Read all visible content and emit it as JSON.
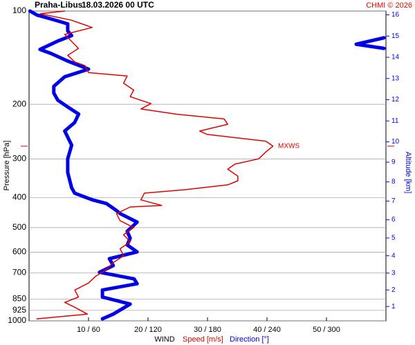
{
  "chart_data": {
    "type": "line",
    "title": "Praha-Libus",
    "subtitle": "18.03.2026 00 UTC",
    "credit": "CHMI © 2026",
    "ylabel": "Pressure [hPa]",
    "y2label": "Altitude [km]",
    "xlabel": "WIND",
    "ylim": [
      100,
      1000
    ],
    "ylog": true,
    "yticks": [
      100,
      200,
      300,
      400,
      500,
      600,
      700,
      850,
      925,
      1000
    ],
    "grid": true,
    "xlim": [
      0,
      60
    ],
    "xticks": [
      {
        "value": 10,
        "label": "10 / 60"
      },
      {
        "value": 20,
        "label": "20 / 120"
      },
      {
        "value": 30,
        "label": "30 / 180"
      },
      {
        "value": 40,
        "label": "40 / 240"
      },
      {
        "value": 50,
        "label": "50 / 300"
      }
    ],
    "y2ticks": [
      1,
      2,
      3,
      4,
      5,
      6,
      7,
      8,
      9,
      10,
      11,
      12,
      13,
      14,
      15,
      16
    ],
    "annotation": {
      "text": "MXWS",
      "pressure": 273
    },
    "series": [
      {
        "name": "Speed [m/s]",
        "color": "#e00000",
        "xlim": [
          0,
          60
        ],
        "pressure": [
          100,
          102,
          107,
          113,
          119,
          125,
          132,
          139,
          146,
          150,
          158,
          162,
          171,
          180,
          189,
          199,
          207,
          215,
          223,
          232,
          244,
          250,
          263,
          273,
          285,
          300,
          312,
          324,
          341,
          353,
          364,
          377,
          387,
          407,
          424,
          429,
          451,
          475,
          500,
          527,
          556,
          585,
          617,
          649,
          683,
          718,
          755,
          795,
          838,
          872,
          904,
          951,
          985
        ],
        "values": [
          6,
          1.9,
          7.1,
          10.6,
          6,
          7.1,
          8.3,
          6.5,
          7.7,
          9.4,
          10,
          16.5,
          15.9,
          17.6,
          17,
          20.5,
          18.8,
          24.6,
          32.8,
          33.4,
          28.7,
          29.9,
          39.8,
          41,
          39.8,
          38.6,
          34.6,
          33.4,
          35.1,
          35.1,
          33.4,
          26.4,
          19.4,
          18.8,
          22.3,
          17,
          14.7,
          15.3,
          17.6,
          15.9,
          17,
          15.3,
          15.9,
          14.1,
          13,
          11.2,
          10,
          7.7,
          8.3,
          6,
          7.7,
          9.8,
          1.3
        ]
      },
      {
        "name": "Direction [°]",
        "color": "#0000e6",
        "xlim": [
          0,
          360
        ],
        "pressure": [
          100,
          103,
          106,
          110,
          116,
          120,
          125,
          133,
          137,
          145,
          154,
          163,
          175,
          184,
          194,
          204,
          215,
          229,
          244,
          271,
          300,
          332,
          372,
          387,
          407,
          418,
          440,
          451,
          480,
          514,
          541,
          569,
          599,
          630,
          663,
          697,
          732,
          759,
          795,
          838,
          883,
          951,
          985,
          125,
          122,
          128,
          132
        ],
        "values": [
          1,
          8,
          22,
          39,
          39,
          43,
          29,
          11,
          22,
          39,
          60,
          36,
          25,
          25,
          29,
          39,
          50,
          46,
          36,
          43,
          39,
          39,
          43,
          46,
          64,
          78,
          88,
          92,
          109,
          99,
          102,
          99,
          109,
          81,
          85,
          71,
          106,
          109,
          74,
          74,
          102,
          85,
          74,
          null,
          358,
          330,
          358
        ]
      }
    ]
  }
}
